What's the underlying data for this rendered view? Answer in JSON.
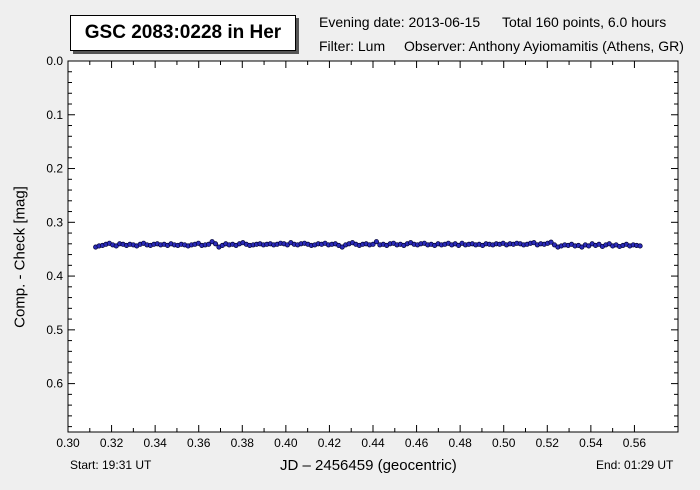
{
  "header": {
    "star_title": "GSC 2083:0228 in Her",
    "evening_date": "Evening date: 2013-06-15",
    "total_points": "Total 160 points, 6.0 hours",
    "filter": "Filter: Lum",
    "observer": "Observer: Anthony Ayiomamitis (Athens, GR)"
  },
  "footer": {
    "start": "Start: 19:31 UT",
    "end": "End: 01:29 UT"
  },
  "colors": {
    "background": "#efefef",
    "plot_area": "#ffffff",
    "point_fill": "#2b2bb8",
    "point_stroke": "#000033"
  },
  "chart_data": {
    "type": "scatter",
    "title": "GSC 2083:0228 in Her",
    "xlabel": "JD – 2456459  (geocentric)",
    "ylabel": "Comp. - Check [mag]",
    "xlim": [
      0.3,
      0.58
    ],
    "ylim": [
      0.0,
      0.69
    ],
    "y_inverted": true,
    "grid": false,
    "x_ticks": [
      0.3,
      0.32,
      0.34,
      0.36,
      0.38,
      0.4,
      0.42,
      0.44,
      0.46,
      0.48,
      0.5,
      0.52,
      0.54,
      0.56
    ],
    "x_tick_labels": [
      "0.30",
      "0.32",
      "0.34",
      "0.36",
      "0.38",
      "0.40",
      "0.42",
      "0.44",
      "0.46",
      "0.48",
      "0.50",
      "0.52",
      "0.54",
      "0.56"
    ],
    "y_ticks": [
      0.0,
      0.1,
      0.2,
      0.3,
      0.4,
      0.5,
      0.6
    ],
    "y_tick_labels": [
      "0.0",
      "0.1",
      "0.2",
      "0.3",
      "0.4",
      "0.5",
      "0.6"
    ],
    "series": [
      {
        "x_start": 0.3127,
        "x_end": 0.5626,
        "y": [
          0.346,
          0.344,
          0.343,
          0.341,
          0.339,
          0.342,
          0.344,
          0.34,
          0.341,
          0.343,
          0.341,
          0.342,
          0.344,
          0.341,
          0.339,
          0.342,
          0.343,
          0.341,
          0.34,
          0.342,
          0.341,
          0.343,
          0.34,
          0.342,
          0.343,
          0.341,
          0.342,
          0.344,
          0.342,
          0.341,
          0.339,
          0.343,
          0.342,
          0.341,
          0.336,
          0.34,
          0.346,
          0.343,
          0.34,
          0.342,
          0.341,
          0.343,
          0.34,
          0.338,
          0.341,
          0.343,
          0.342,
          0.341,
          0.34,
          0.342,
          0.341,
          0.34,
          0.342,
          0.341,
          0.339,
          0.34,
          0.342,
          0.338,
          0.341,
          0.342,
          0.34,
          0.339,
          0.341,
          0.343,
          0.342,
          0.34,
          0.341,
          0.339,
          0.342,
          0.341,
          0.34,
          0.343,
          0.346,
          0.342,
          0.34,
          0.338,
          0.341,
          0.343,
          0.341,
          0.34,
          0.342,
          0.341,
          0.336,
          0.342,
          0.341,
          0.343,
          0.34,
          0.339,
          0.342,
          0.341,
          0.343,
          0.34,
          0.338,
          0.341,
          0.342,
          0.34,
          0.339,
          0.342,
          0.341,
          0.343,
          0.34,
          0.342,
          0.341,
          0.339,
          0.342,
          0.34,
          0.343,
          0.339,
          0.342,
          0.341,
          0.34,
          0.342,
          0.341,
          0.343,
          0.34,
          0.341,
          0.342,
          0.34,
          0.341,
          0.339,
          0.342,
          0.34,
          0.341,
          0.339,
          0.34,
          0.342,
          0.341,
          0.339,
          0.338,
          0.342,
          0.34,
          0.341,
          0.339,
          0.337,
          0.342,
          0.346,
          0.344,
          0.342,
          0.343,
          0.341,
          0.344,
          0.343,
          0.346,
          0.342,
          0.344,
          0.34,
          0.343,
          0.341,
          0.345,
          0.342,
          0.34,
          0.344,
          0.342,
          0.345,
          0.343,
          0.341,
          0.344,
          0.342,
          0.343,
          0.344
        ]
      }
    ]
  }
}
